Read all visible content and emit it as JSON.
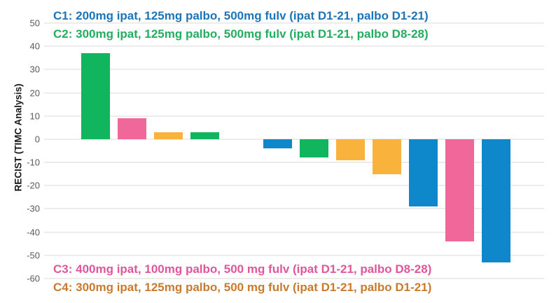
{
  "chart_data": {
    "type": "bar",
    "variant": "waterfall",
    "title": "",
    "xlabel": "",
    "ylabel": "RECIST (TIMC Analysis)",
    "ylim": [
      -60,
      50
    ],
    "yticks": [
      50,
      40,
      30,
      20,
      10,
      0,
      -10,
      -20,
      -30,
      -40,
      -50,
      -60
    ],
    "grid": "horizontal",
    "gridline_color": "#ececec",
    "tick_label_color": "#595959",
    "axis_title_color": "#1a1a1a",
    "bars": [
      {
        "value": 37,
        "cohort": "C2"
      },
      {
        "value": 9,
        "cohort": "C3"
      },
      {
        "value": 3,
        "cohort": "C4"
      },
      {
        "value": 3,
        "cohort": "C2"
      },
      {
        "value": 0,
        "cohort": ""
      },
      {
        "value": -4,
        "cohort": "C1"
      },
      {
        "value": -8,
        "cohort": "C2"
      },
      {
        "value": -9,
        "cohort": "C4"
      },
      {
        "value": -15,
        "cohort": "C4"
      },
      {
        "value": -29,
        "cohort": "C1"
      },
      {
        "value": -44,
        "cohort": "C3"
      },
      {
        "value": -53,
        "cohort": "C1"
      }
    ],
    "cohort_colors": {
      "C1": "#0f88cb",
      "C2": "#10b55e",
      "C3": "#f0679a",
      "C4": "#f9b33c"
    }
  },
  "legend": {
    "top": [
      {
        "id": "C1",
        "text": "C1: 200mg ipat, 125mg palbo, 500mg fulv (ipat D1-21, palbo D1-21)",
        "color": "#1c75b8"
      },
      {
        "id": "C2",
        "text": "C2: 300mg ipat, 125mg palbo, 500mg fulv (ipat D1-21, palbo D8-28)",
        "color": "#24ad5f"
      }
    ],
    "bottom": [
      {
        "id": "C3",
        "text": "C3: 400mg ipat, 100mg palbo, 500 mg fulv (ipat D1-21, palbo D8-28)",
        "color": "#e0569b"
      },
      {
        "id": "C4",
        "text": "C4: 300mg ipat, 125mg palbo, 500 mg fulv (ipat D1-21, palbo D1-21)",
        "color": "#c97b2d"
      }
    ]
  }
}
